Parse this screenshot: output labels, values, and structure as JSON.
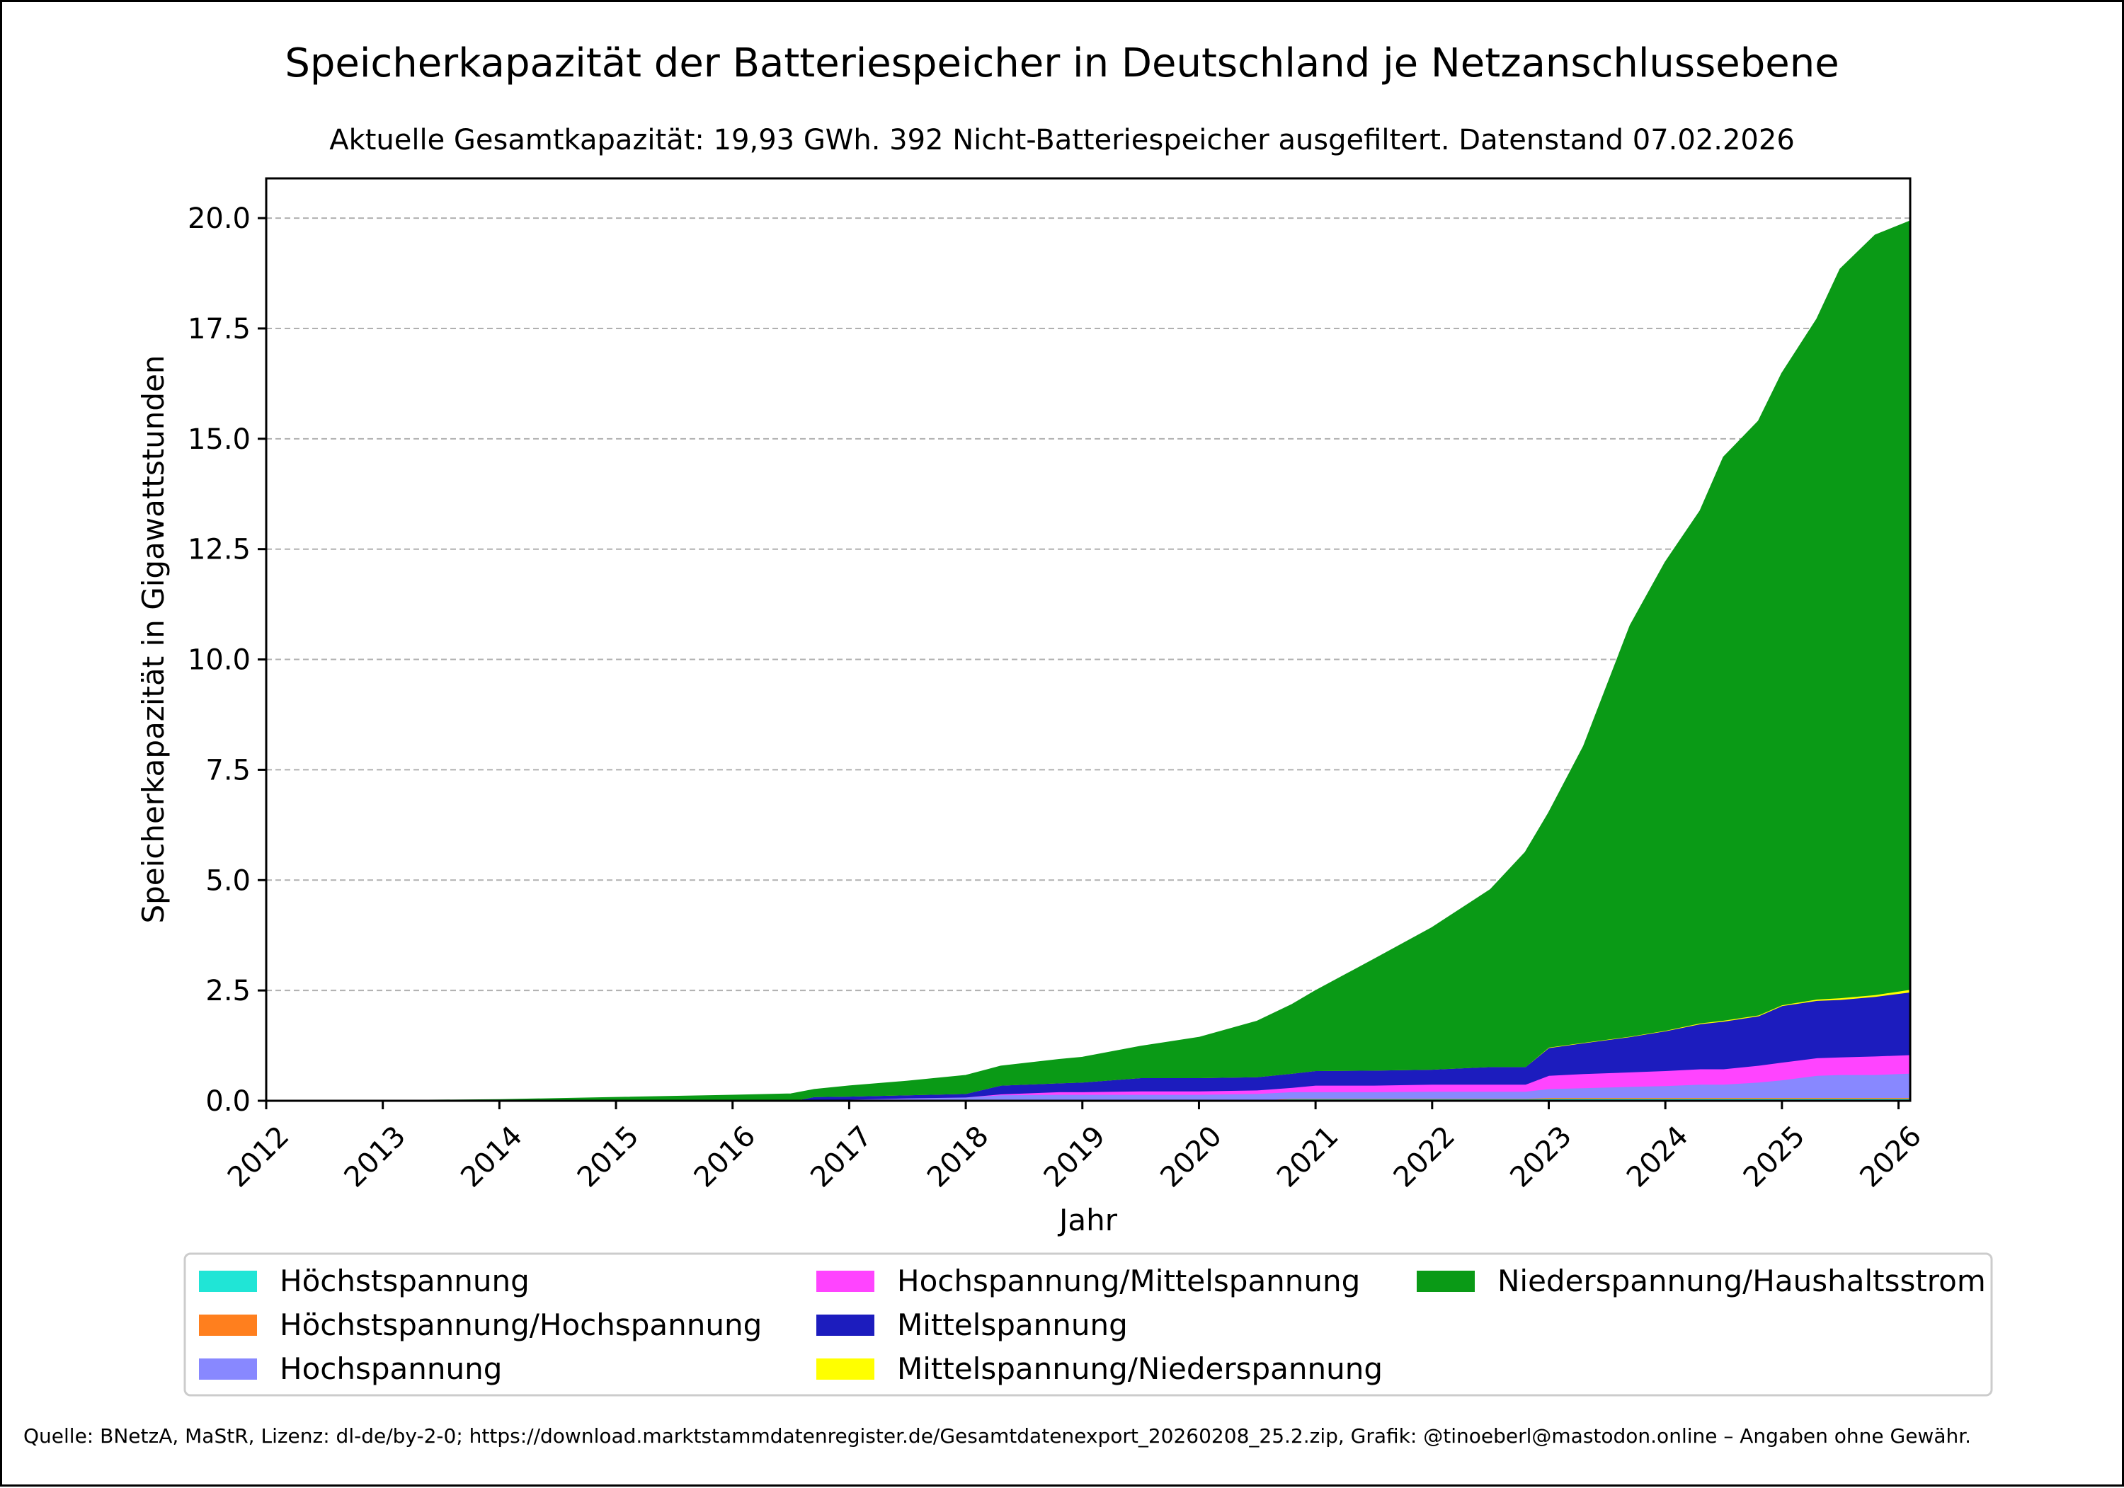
{
  "title": "Speicherkapazität der Batteriespeicher in Deutschland je Netzanschlussebene",
  "subtitle": "Aktuelle Gesamtkapazität: 19,93 GWh. 392 Nicht-Batteriespeicher ausgefiltert. Datenstand 07.02.2026",
  "source": "Quelle: BNetzA, MaStR, Lizenz: dl-de/by-2-0; https://download.marktstammdatenregister.de/Gesamtdatenexport_20260208_25.2.zip, Grafik: @tinoeberl@mastodon.online – Angaben ohne Gewähr.",
  "chart_data": {
    "type": "area",
    "stacked": true,
    "xlabel": "Jahr",
    "ylabel": "Speicherkapazität in Gigawattstunden",
    "xlim": [
      2012.0,
      2026.1
    ],
    "ylim": [
      0,
      20.9
    ],
    "x_ticks": [
      2012,
      2013,
      2014,
      2015,
      2016,
      2017,
      2018,
      2019,
      2020,
      2021,
      2022,
      2023,
      2024,
      2025,
      2026
    ],
    "y_ticks": [
      0.0,
      2.5,
      5.0,
      7.5,
      10.0,
      12.5,
      15.0,
      17.5,
      20.0
    ],
    "y_tick_labels": [
      "0.0",
      "2.5",
      "5.0",
      "7.5",
      "10.0",
      "12.5",
      "15.0",
      "17.5",
      "20.0"
    ],
    "grid": "horizontal dashed",
    "legend_position": "bottom",
    "x": [
      2012.0,
      2013.0,
      2014.0,
      2015.0,
      2016.0,
      2016.5,
      2016.7,
      2017.0,
      2017.5,
      2018.0,
      2018.3,
      2018.8,
      2019.0,
      2019.5,
      2020.0,
      2020.5,
      2020.8,
      2021.0,
      2021.5,
      2022.0,
      2022.5,
      2022.8,
      2023.0,
      2023.3,
      2023.7,
      2024.0,
      2024.3,
      2024.5,
      2024.8,
      2025.0,
      2025.3,
      2025.5,
      2025.8,
      2026.1
    ],
    "series": [
      {
        "name": "Höchstspannung",
        "color": "#20e5d6",
        "values": [
          0,
          0,
          0,
          0,
          0,
          0,
          0,
          0,
          0,
          0,
          0,
          0,
          0,
          0,
          0,
          0.02,
          0.05,
          0.05,
          0.05,
          0.05,
          0.05,
          0.05,
          0.06,
          0.06,
          0.06,
          0.06,
          0.06,
          0.06,
          0.06,
          0.06,
          0.06,
          0.06,
          0.06,
          0.06
        ]
      },
      {
        "name": "Höchstspannung/Hochspannung",
        "color": "#ff7f1e",
        "values": [
          0,
          0,
          0,
          0,
          0,
          0,
          0,
          0,
          0,
          0,
          0,
          0,
          0,
          0,
          0,
          0,
          0.01,
          0.01,
          0.01,
          0.01,
          0.01,
          0.01,
          0.02,
          0.02,
          0.02,
          0.02,
          0.02,
          0.02,
          0.02,
          0.02,
          0.02,
          0.02,
          0.02,
          0.02
        ]
      },
      {
        "name": "Hochspannung",
        "color": "#8888ff",
        "values": [
          0,
          0,
          0,
          0,
          0,
          0,
          0.02,
          0.04,
          0.07,
          0.09,
          0.14,
          0.15,
          0.15,
          0.15,
          0.15,
          0.15,
          0.15,
          0.15,
          0.15,
          0.16,
          0.16,
          0.16,
          0.2,
          0.22,
          0.25,
          0.27,
          0.3,
          0.3,
          0.35,
          0.4,
          0.5,
          0.52,
          0.52,
          0.55
        ]
      },
      {
        "name": "Hochspannung/Mittelspannung",
        "color": "#ff44ff",
        "values": [
          0,
          0,
          0,
          0,
          0,
          0,
          0,
          0,
          0,
          0,
          0.02,
          0.06,
          0.06,
          0.08,
          0.08,
          0.08,
          0.1,
          0.15,
          0.15,
          0.16,
          0.16,
          0.16,
          0.3,
          0.32,
          0.33,
          0.34,
          0.35,
          0.35,
          0.38,
          0.4,
          0.4,
          0.4,
          0.42,
          0.42
        ]
      },
      {
        "name": "Mittelspannung",
        "color": "#1c1cbe",
        "values": [
          0,
          0,
          0,
          0,
          0,
          0,
          0.08,
          0.07,
          0.07,
          0.08,
          0.2,
          0.2,
          0.22,
          0.3,
          0.3,
          0.3,
          0.32,
          0.33,
          0.34,
          0.34,
          0.4,
          0.4,
          0.63,
          0.7,
          0.8,
          0.9,
          1.02,
          1.08,
          1.12,
          1.28,
          1.3,
          1.3,
          1.35,
          1.42
        ]
      },
      {
        "name": "Mittelspannung/Niederspannung",
        "color": "#ffff00",
        "values": [
          0,
          0,
          0,
          0,
          0,
          0,
          0,
          0,
          0,
          0,
          0,
          0,
          0,
          0,
          0,
          0,
          0,
          0,
          0,
          0,
          0,
          0,
          0.01,
          0.01,
          0.01,
          0.01,
          0.02,
          0.02,
          0.02,
          0.02,
          0.03,
          0.04,
          0.04,
          0.06
        ]
      },
      {
        "name": "Niederspannung/Haushaltsstrom",
        "color": "#0a9a16",
        "values": [
          0,
          0,
          0.02,
          0.07,
          0.12,
          0.15,
          0.15,
          0.22,
          0.3,
          0.4,
          0.42,
          0.52,
          0.55,
          0.7,
          0.9,
          1.25,
          1.55,
          1.8,
          2.5,
          3.2,
          4.0,
          4.85,
          5.3,
          6.7,
          9.3,
          10.6,
          11.6,
          12.75,
          13.45,
          14.3,
          15.4,
          16.5,
          17.2,
          17.4
        ]
      }
    ]
  }
}
